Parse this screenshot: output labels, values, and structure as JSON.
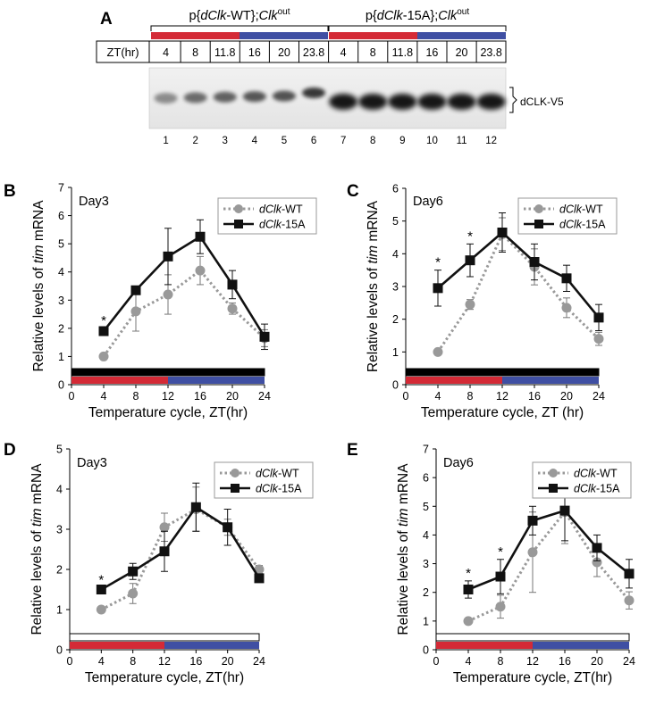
{
  "panel_A": {
    "letter": "A",
    "group_labels": [
      {
        "pre": "p{",
        "ital": "dClk",
        "mid": "-WT};",
        "ital2": "Clk",
        "sup": "out"
      },
      {
        "pre": "p{",
        "ital": "dClk",
        "mid": "-15A};",
        "ital2": "Clk",
        "sup": "out"
      }
    ],
    "zt_label": "ZT(hr)",
    "zt_values": [
      "4",
      "8",
      "11.8",
      "16",
      "20",
      "23.8",
      "4",
      "8",
      "11.8",
      "16",
      "20",
      "23.8"
    ],
    "lane_numbers": [
      "1",
      "2",
      "3",
      "4",
      "5",
      "6",
      "7",
      "8",
      "9",
      "10",
      "11",
      "12"
    ],
    "band_label": "dCLK-V5",
    "colors": {
      "warm": "#d42a36",
      "cool": "#3f4fa3"
    }
  },
  "panels": [
    {
      "id": "B",
      "letter": "B",
      "day": "Day3",
      "ylabel_pre": "Relative levels of ",
      "ylabel_ital": "tim",
      "ylabel_post": " mRNA",
      "xlabel": "Temperature cycle, ZT(hr)",
      "bar_fill": "#000000",
      "legend": [
        "dClk-WT",
        "dClk-15A"
      ]
    },
    {
      "id": "C",
      "letter": "C",
      "day": "Day6",
      "ylabel_pre": "Relative levels of ",
      "ylabel_ital": "tim",
      "ylabel_post": " mRNA",
      "xlabel": "Temperature cycle, ZT (hr)",
      "bar_fill": "#000000",
      "legend": [
        "dClk-WT",
        "dClk-15A"
      ]
    },
    {
      "id": "D",
      "letter": "D",
      "day": "Day3",
      "ylabel_pre": "Relative levels of ",
      "ylabel_ital": "tim",
      "ylabel_post": " mRNA",
      "xlabel": "Temperature cycle, ZT(hr)",
      "bar_fill": "#ffffff",
      "legend": [
        "dClk-WT",
        "dClk-15A"
      ]
    },
    {
      "id": "E",
      "letter": "E",
      "day": "Day6",
      "ylabel_pre": "Relative levels of ",
      "ylabel_ital": "tim",
      "ylabel_post": " mRNA",
      "xlabel": "Temperature cycle, ZT(hr)",
      "bar_fill": "#ffffff",
      "legend": [
        "dClk-WT",
        "dClk-15A"
      ]
    }
  ],
  "chart_data": [
    {
      "panel": "B",
      "type": "line",
      "x": [
        4,
        8,
        12,
        16,
        20,
        24
      ],
      "xlim": [
        0,
        24
      ],
      "ylim": [
        0,
        7
      ],
      "xticks": [
        0,
        4,
        8,
        12,
        16,
        20,
        24
      ],
      "yticks": [
        0,
        1,
        2,
        3,
        4,
        5,
        6,
        7
      ],
      "series": [
        {
          "name": "dClk-WT",
          "values": [
            1.0,
            2.6,
            3.2,
            4.05,
            2.7,
            1.65
          ],
          "err": [
            0.05,
            0.7,
            0.7,
            0.5,
            0.2,
            0.3
          ]
        },
        {
          "name": "dClk-15A",
          "values": [
            1.9,
            3.35,
            4.55,
            5.25,
            3.55,
            1.7
          ],
          "err": [
            0.1,
            0.1,
            1.0,
            0.6,
            0.5,
            0.45
          ]
        }
      ],
      "significance": [
        {
          "x": 4,
          "label": "*"
        }
      ]
    },
    {
      "panel": "C",
      "type": "line",
      "x": [
        4,
        8,
        12,
        16,
        20,
        24
      ],
      "xlim": [
        0,
        24
      ],
      "ylim": [
        0,
        6
      ],
      "xticks": [
        0,
        4,
        8,
        12,
        16,
        20,
        24
      ],
      "yticks": [
        0,
        1,
        2,
        3,
        4,
        5,
        6
      ],
      "series": [
        {
          "name": "dClk-WT",
          "values": [
            1.0,
            2.45,
            4.6,
            3.6,
            2.35,
            1.4
          ],
          "err": [
            0.05,
            0.15,
            0.5,
            0.55,
            0.3,
            0.2
          ]
        },
        {
          "name": "dClk-15A",
          "values": [
            2.95,
            3.8,
            4.65,
            3.75,
            3.25,
            2.05
          ],
          "err": [
            0.55,
            0.5,
            0.6,
            0.55,
            0.4,
            0.4
          ]
        }
      ],
      "significance": [
        {
          "x": 4,
          "label": "*"
        },
        {
          "x": 8,
          "label": "*"
        }
      ]
    },
    {
      "panel": "D",
      "type": "line",
      "x": [
        4,
        8,
        12,
        16,
        20,
        24
      ],
      "xlim": [
        0,
        24
      ],
      "ylim": [
        0,
        5
      ],
      "xticks": [
        0,
        4,
        8,
        12,
        16,
        20,
        24
      ],
      "yticks": [
        0,
        1,
        2,
        3,
        4,
        5
      ],
      "series": [
        {
          "name": "dClk-WT",
          "values": [
            1.0,
            1.4,
            3.05,
            3.5,
            3.05,
            2.0
          ],
          "err": [
            0.05,
            0.25,
            0.35,
            0.55,
            0.2,
            0.1
          ]
        },
        {
          "name": "dClk-15A",
          "values": [
            1.5,
            1.95,
            2.45,
            3.55,
            3.05,
            1.78
          ],
          "err": [
            0.05,
            0.2,
            0.5,
            0.6,
            0.45,
            0.1
          ]
        }
      ],
      "significance": [
        {
          "x": 4,
          "label": "*"
        }
      ]
    },
    {
      "panel": "E",
      "type": "line",
      "x": [
        4,
        8,
        12,
        16,
        20,
        24
      ],
      "xlim": [
        0,
        24
      ],
      "ylim": [
        0,
        7
      ],
      "xticks": [
        0,
        4,
        8,
        12,
        16,
        20,
        24
      ],
      "yticks": [
        0,
        1,
        2,
        3,
        4,
        5,
        6,
        7
      ],
      "series": [
        {
          "name": "dClk-WT",
          "values": [
            1.0,
            1.5,
            3.4,
            4.8,
            3.05,
            1.72
          ],
          "err": [
            0.05,
            0.4,
            1.4,
            1.1,
            0.5,
            0.3
          ]
        },
        {
          "name": "dClk-15A",
          "values": [
            2.1,
            2.55,
            4.5,
            4.85,
            3.55,
            2.65
          ],
          "err": [
            0.3,
            0.6,
            0.5,
            1.05,
            0.45,
            0.5
          ]
        }
      ],
      "significance": [
        {
          "x": 4,
          "label": "*"
        },
        {
          "x": 8,
          "label": "*"
        }
      ]
    }
  ]
}
